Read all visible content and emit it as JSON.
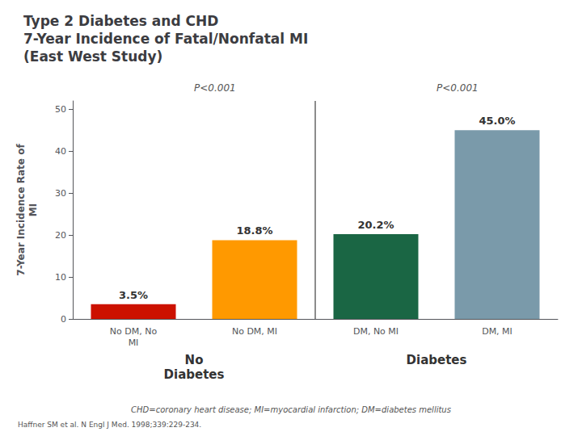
{
  "chart_data": {
    "type": "bar",
    "title": "Type 2 Diabetes and CHD\n7-Year Incidence of Fatal/Nonfatal MI\n(East West Study)",
    "categories": [
      "No DM, No\nMI",
      "No DM, MI",
      "DM, No MI",
      "DM, MI"
    ],
    "values": [
      3.5,
      18.8,
      20.2,
      45.0
    ],
    "value_labels": [
      "3.5%",
      "18.8%",
      "20.2%",
      "45.0%"
    ],
    "data_labels": true,
    "colors": [
      "#cc1100",
      "#ff9900",
      "#1a6644",
      "#7a9aaa"
    ],
    "ylabel": "7-Year Incidence Rate of\nMI",
    "ylim": [
      0,
      52
    ],
    "yticks": [
      0,
      10,
      20,
      30,
      40,
      50
    ],
    "grid": false,
    "groups": [
      {
        "label": "No\nDiabetes",
        "annotation": "P<0.001",
        "categories": [
          "No DM, No\nMI",
          "No DM, MI"
        ]
      },
      {
        "label": "Diabetes",
        "annotation": "P<0.001",
        "categories": [
          "DM, No MI",
          "DM, MI"
        ]
      }
    ],
    "footnote": "CHD=coronary heart disease; MI=myocardial infarction; DM=diabetes mellitus",
    "citation": "Haffner SM et al. N Engl J Med. 1998;339:229-234."
  }
}
